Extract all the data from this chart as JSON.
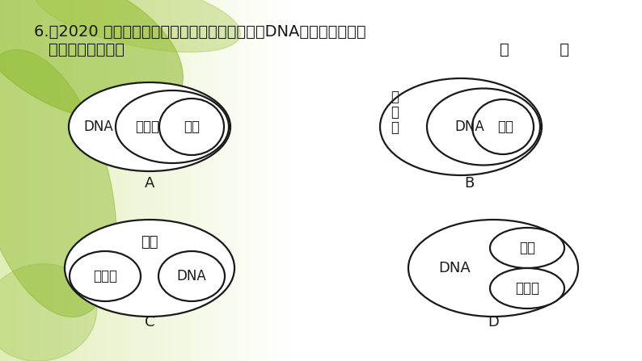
{
  "title_line1": "6.（2020 自贡中考）下面关于细胞核中染色体、DNA、基因三者的关",
  "title_line2": "系，表示正确的是",
  "answer_bracket": "（          ）",
  "text_color": "#1a1a1a",
  "circle_color": "#1a1a1a",
  "label_A": "A",
  "label_B": "B",
  "label_C": "C",
  "label_D": "D",
  "font_size_title": 14,
  "font_size_label": 13,
  "font_size_diagram": 12
}
